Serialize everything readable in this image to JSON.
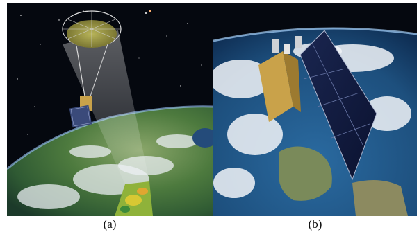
{
  "figure": {
    "panels": [
      {
        "caption": "(a)",
        "icon": "smap-satellite-illustration"
      },
      {
        "caption": "(b)",
        "icon": "sentinel-2-satellite-illustration"
      }
    ],
    "colors": {
      "space": "#05080f",
      "earth_a": "#3f6b3a",
      "ocean_b": "#1d4f7d",
      "solar_panel": "#141e3c",
      "satellite_body": "#c9a24a"
    }
  }
}
